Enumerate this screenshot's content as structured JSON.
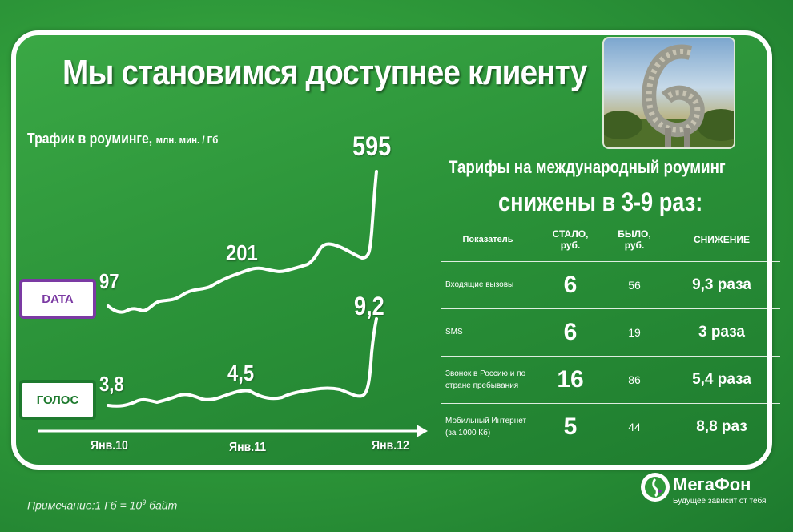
{
  "title": "Мы становимся доступнее клиенту",
  "chart": {
    "heading": "Трафик в роуминге,",
    "unit": "млн. мин. / Гб",
    "data_label": "DATA",
    "voice_label": "ГОЛОС",
    "x_ticks": [
      "Янв.10",
      "Янв.11",
      "Янв.12"
    ]
  },
  "chart_data": {
    "type": "line",
    "x": [
      "Янв.10",
      "Янв.11",
      "Янв.12"
    ],
    "series": [
      {
        "name": "DATA",
        "values": [
          97,
          201,
          595
        ]
      },
      {
        "name": "ГОЛОС",
        "values": [
          3.8,
          4.5,
          9.2
        ]
      }
    ],
    "value_labels": {
      "data": [
        "97",
        "201",
        "595"
      ],
      "voice": [
        "3,8",
        "4,5",
        "9,2"
      ]
    }
  },
  "tariffs": {
    "heading_line1": "Тарифы на международный роуминг",
    "heading_line2": "снижены в 3-9 раз:",
    "columns": [
      "Показатель",
      "СТАЛО, руб.",
      "БЫЛО, руб.",
      "СНИЖЕНИЕ"
    ],
    "rows": [
      {
        "name": "Входящие вызовы",
        "now": "6",
        "was": "56",
        "cut": "9,3 раза"
      },
      {
        "name": "SMS",
        "now": "6",
        "was": "19",
        "cut": "3 раза"
      },
      {
        "name": "Звонок в Россию и по стране пребывания",
        "now": "16",
        "was": "86",
        "cut": "5,4 раза"
      },
      {
        "name": "Мобильный Интернет (за 1000 Кб)",
        "now": "5",
        "was": "44",
        "cut": "8,8 раз"
      }
    ]
  },
  "note": {
    "prefix": "Примечание:1 Гб = 10",
    "exp": "9",
    "suffix": " байт"
  },
  "logo": {
    "name": "МегаФон",
    "tagline": "Будущее зависит от тебя"
  },
  "colors": {
    "green": "#2f9a3a",
    "purple": "#7b3aa3",
    "dark_green": "#1e7a2e",
    "white": "#ffffff"
  }
}
